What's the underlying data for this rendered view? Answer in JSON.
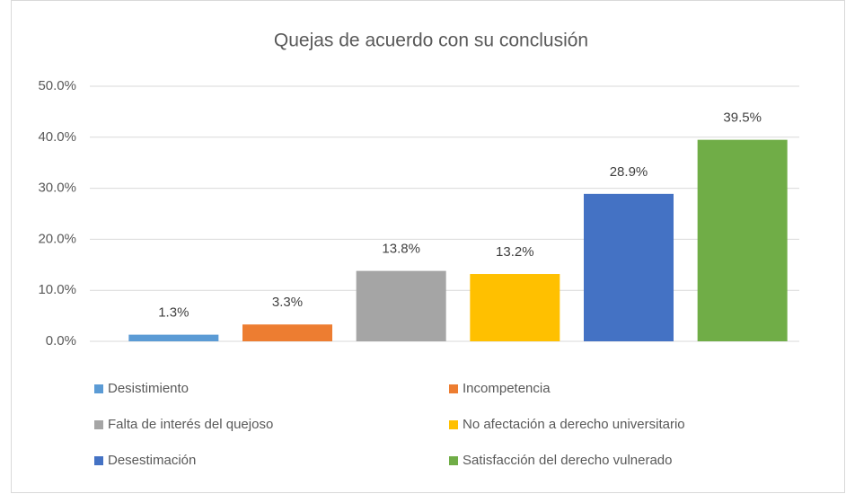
{
  "chart_data": {
    "type": "bar",
    "title": "Quejas de acuerdo con su conclusión",
    "series": [
      {
        "name": "Desistimiento",
        "color": "#5b9bd5",
        "values": [
          1.3
        ],
        "value_labels": [
          "1.3%"
        ]
      },
      {
        "name": "Incompetencia",
        "color": "#ed7d31",
        "values": [
          3.3
        ],
        "value_labels": [
          "3.3%"
        ]
      },
      {
        "name": "Falta de interés del quejoso",
        "color": "#a5a5a5",
        "values": [
          13.8
        ],
        "value_labels": [
          "13.8%"
        ]
      },
      {
        "name": "No afectación a derecho universitario",
        "color": "#ffc000",
        "values": [
          13.2
        ],
        "value_labels": [
          "13.2%"
        ]
      },
      {
        "name": "Desestimación",
        "color": "#4472c4",
        "values": [
          28.9
        ],
        "value_labels": [
          "28.9%"
        ]
      },
      {
        "name": "Satisfacción del derecho vulnerado",
        "color": "#70ad47",
        "values": [
          39.5
        ],
        "value_labels": [
          "39.5%"
        ]
      }
    ],
    "ylim": [
      0,
      50
    ],
    "yticks": [
      {
        "value": 0,
        "label": "0.0%"
      },
      {
        "value": 10,
        "label": "10.0%"
      },
      {
        "value": 20,
        "label": "20.0%"
      },
      {
        "value": 30,
        "label": "30.0%"
      },
      {
        "value": 40,
        "label": "40.0%"
      },
      {
        "value": 50,
        "label": "50.0%"
      }
    ],
    "grid": true
  }
}
